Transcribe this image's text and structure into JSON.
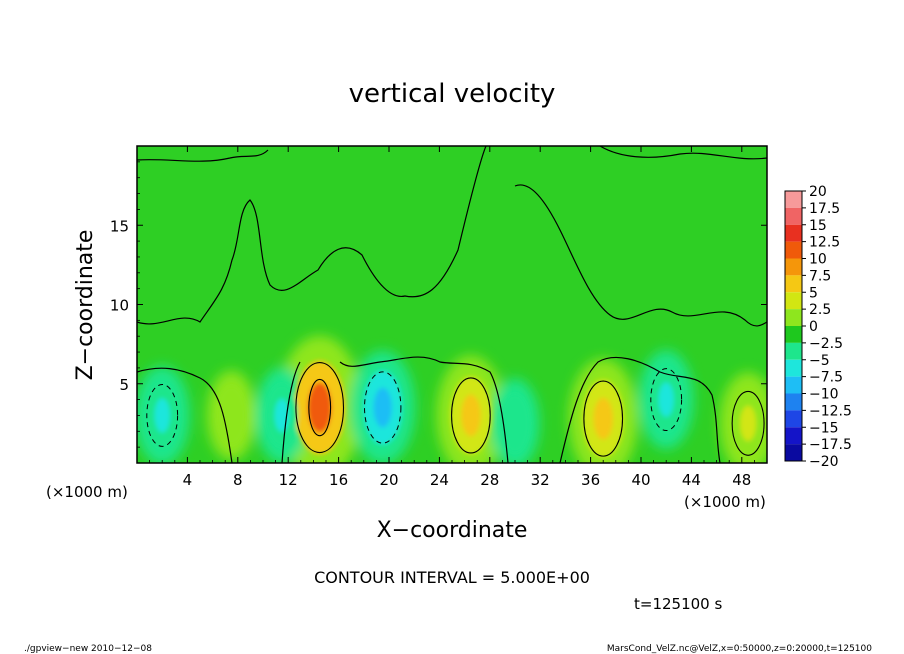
{
  "chart_data": {
    "type": "heatmap",
    "title": "vertical velocity",
    "xlabel": "X−coordinate",
    "ylabel": "Z−coordinate",
    "x_unit_left": "(×1000 m)",
    "x_unit_right": "(×1000 m)",
    "xlim": [
      0,
      50
    ],
    "ylim": [
      0,
      20
    ],
    "x_ticks": [
      "4",
      "8",
      "12",
      "16",
      "20",
      "24",
      "28",
      "32",
      "36",
      "40",
      "44",
      "48"
    ],
    "y_ticks": [
      "5",
      "10",
      "15"
    ],
    "colorbar_levels": [
      "20",
      "17.5",
      "15",
      "12.5",
      "10",
      "7.5",
      "5",
      "2.5",
      "0",
      "−2.5",
      "−5",
      "−7.5",
      "−10",
      "−12.5",
      "−15",
      "−17.5",
      "−20"
    ],
    "colorbar_colors": [
      "#f79a9a",
      "#f06464",
      "#e83020",
      "#f05a0a",
      "#f5960a",
      "#f5c814",
      "#d2e612",
      "#8ee61e",
      "#1ec81e",
      "#1ee68c",
      "#1ee6dc",
      "#1ebef5",
      "#1e82f0",
      "#1e46e6",
      "#1414c8",
      "#0a0aa0",
      "#5a14a0"
    ],
    "contour_interval_label": "CONTOUR INTERVAL = 5.000E+00",
    "time_label": "t=125100 s",
    "features": [
      {
        "kind": "updraft",
        "x": 14.5,
        "z": 3.5,
        "w": 12.5
      },
      {
        "kind": "updraft",
        "x": 26.5,
        "z": 3.0,
        "w": 8.5
      },
      {
        "kind": "updraft",
        "x": 37.0,
        "z": 2.8,
        "w": 8.5
      },
      {
        "kind": "updraft",
        "x": 48.5,
        "z": 2.5,
        "w": 5.5
      },
      {
        "kind": "updraft",
        "x": 7.5,
        "z": 3.0,
        "w": 3.5
      },
      {
        "kind": "downdraft",
        "x": 19.5,
        "z": 3.5,
        "w": -7.5
      },
      {
        "kind": "downdraft",
        "x": 2.0,
        "z": 3.0,
        "w": -5.0
      },
      {
        "kind": "downdraft",
        "x": 11.5,
        "z": 3.0,
        "w": -4.5
      },
      {
        "kind": "downdraft",
        "x": 42.0,
        "z": 4.0,
        "w": -5.0
      },
      {
        "kind": "downdraft",
        "x": 30.0,
        "z": 2.5,
        "w": -3.5
      }
    ]
  },
  "footer": {
    "left": "./gpview−new   2010−12−08",
    "right": "MarsCond_VelZ.nc@VelZ,x=0:50000,z=0:20000,t=125100"
  }
}
